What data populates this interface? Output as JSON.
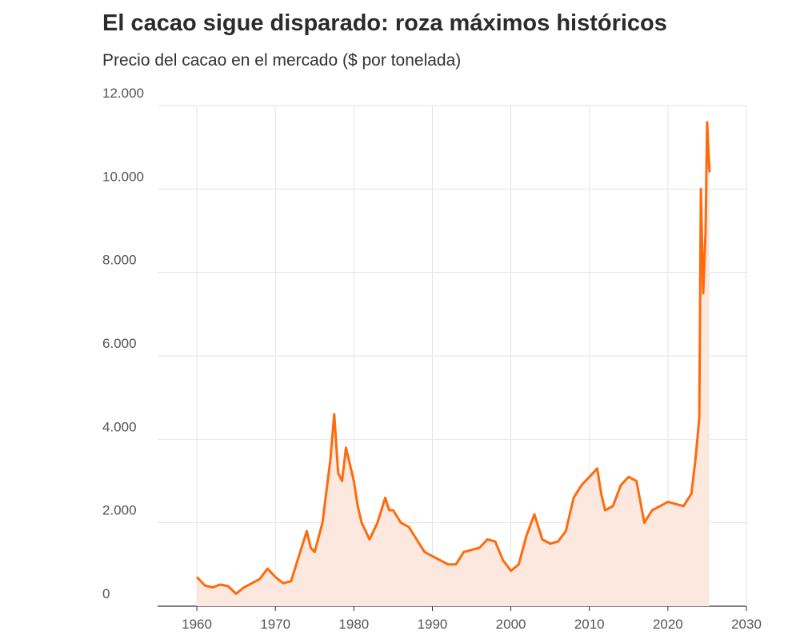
{
  "chart_data": {
    "type": "line",
    "title": "El cacao sigue disparado: roza máximos históricos",
    "subtitle": "Precio del cacao en el mercado ($ por tonelada)",
    "x": [
      1960,
      1961,
      1962,
      1963,
      1964,
      1965,
      1966,
      1967,
      1968,
      1969,
      1970,
      1971,
      1972,
      1973,
      1974,
      1974.5,
      1975,
      1976,
      1977,
      1977.5,
      1978,
      1978.5,
      1979,
      1980,
      1980.5,
      1981,
      1982,
      1983,
      1984,
      1984.5,
      1985,
      1986,
      1987,
      1988,
      1989,
      1990,
      1991,
      1992,
      1993,
      1994,
      1995,
      1996,
      1997,
      1998,
      1999,
      2000,
      2001,
      2002,
      2003,
      2004,
      2005,
      2006,
      2007,
      2008,
      2009,
      2010,
      2011,
      2011.5,
      2012,
      2013,
      2014,
      2015,
      2016,
      2017,
      2018,
      2019,
      2020,
      2021,
      2022,
      2023,
      2023.5,
      2024,
      2024.2,
      2024.5,
      2024.8,
      2025,
      2025.3
    ],
    "values": [
      700,
      500,
      450,
      520,
      480,
      300,
      450,
      550,
      650,
      900,
      700,
      550,
      600,
      1200,
      1800,
      1400,
      1300,
      2000,
      3500,
      4600,
      3200,
      3000,
      3800,
      3000,
      2400,
      2000,
      1600,
      2000,
      2600,
      2300,
      2300,
      2000,
      1900,
      1600,
      1300,
      1200,
      1100,
      1000,
      1000,
      1300,
      1350,
      1400,
      1600,
      1550,
      1100,
      850,
      1000,
      1700,
      2200,
      1600,
      1500,
      1550,
      1800,
      2600,
      2900,
      3100,
      3300,
      2700,
      2300,
      2400,
      2900,
      3100,
      3000,
      2000,
      2300,
      2400,
      2500,
      2450,
      2400,
      2700,
      3500,
      4500,
      10000,
      7500,
      9000,
      11600,
      10400
    ],
    "color": "#ff6a0d",
    "fill_color": "#fde8df",
    "area": true,
    "grid": true,
    "xlim": [
      1955,
      2030
    ],
    "xticks": [
      1960,
      1970,
      1980,
      1990,
      2000,
      2010,
      2020,
      2030
    ],
    "ylim": [
      0,
      12000
    ],
    "yticks": [
      0,
      {
        "value": 2000,
        "label": "2.000"
      },
      {
        "value": 4000,
        "label": "4.000"
      },
      {
        "value": 6000,
        "label": "6.000"
      },
      {
        "value": 8000,
        "label": "8.000"
      },
      {
        "value": 10000,
        "label": "10.000"
      },
      {
        "value": 12000,
        "label": "12.000"
      }
    ]
  }
}
